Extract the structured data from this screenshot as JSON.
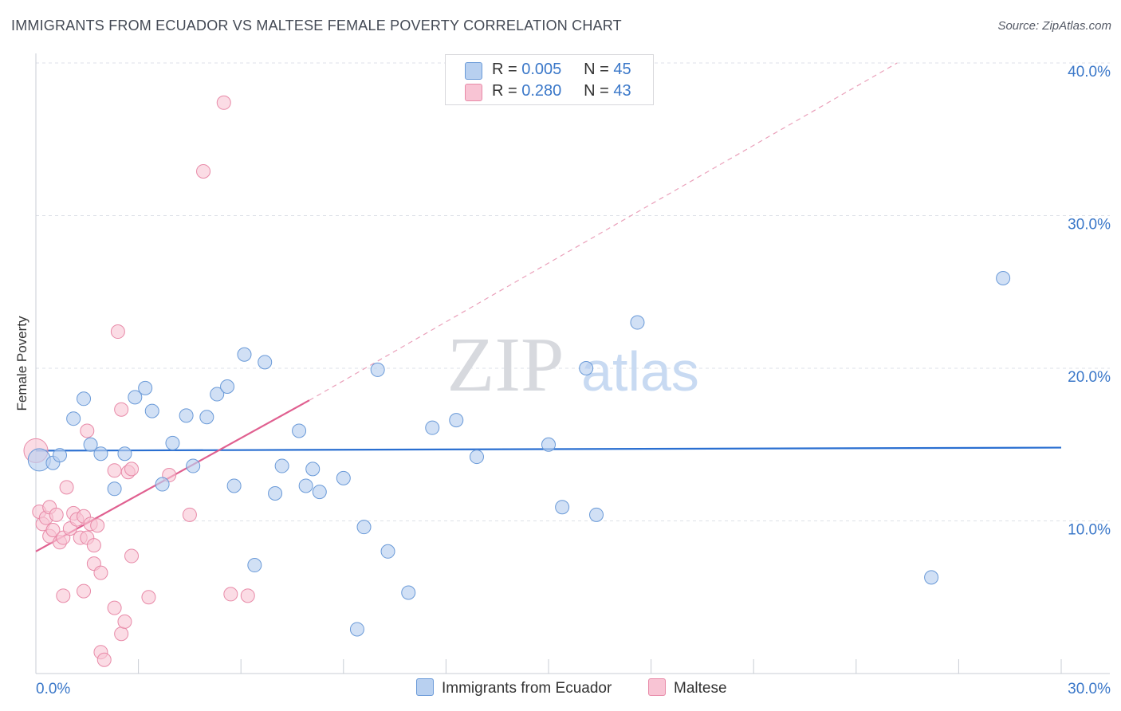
{
  "title": "IMMIGRANTS FROM ECUADOR VS MALTESE FEMALE POVERTY CORRELATION CHART",
  "source": "Source: ZipAtlas.com",
  "watermark": {
    "zip": "ZIP",
    "atlas": "atlas"
  },
  "legend": {
    "series1": {
      "r_label": "R =",
      "r_value": "0.005",
      "n_label": "N =",
      "n_value": "45"
    },
    "series2": {
      "r_label": "R =",
      "r_value": "0.280",
      "n_label": "N =",
      "n_value": "43"
    }
  },
  "colors": {
    "blue_fill": "#b8d0f0",
    "blue_stroke": "#6a9ad8",
    "blue_line": "#2a6fd1",
    "pink_fill": "#f8c4d4",
    "pink_stroke": "#e88aa8",
    "pink_line": "#e06090",
    "axis_text": "#3b78c9",
    "grid": "#dde1e8"
  },
  "chart_data": {
    "type": "scatter",
    "title": "IMMIGRANTS FROM ECUADOR VS MALTESE FEMALE POVERTY CORRELATION CHART",
    "xlabel": "",
    "ylabel": "Female Poverty",
    "xlim": [
      0,
      30
    ],
    "ylim": [
      0,
      40
    ],
    "x_tick_labels": [
      "0.0%",
      "30.0%"
    ],
    "y_ticks": [
      10,
      20,
      30,
      40
    ],
    "y_tick_labels": [
      "10.0%",
      "20.0%",
      "30.0%",
      "40.0%"
    ],
    "grid": true,
    "series": [
      {
        "name": "Immigrants from Ecuador",
        "color": "blue",
        "trend": {
          "x": [
            0,
            30
          ],
          "y": [
            14.6,
            14.8
          ]
        },
        "points": [
          [
            0.1,
            14.0
          ],
          [
            0.5,
            13.8
          ],
          [
            0.7,
            14.3
          ],
          [
            1.1,
            16.7
          ],
          [
            1.4,
            18.0
          ],
          [
            1.6,
            15.0
          ],
          [
            1.9,
            14.4
          ],
          [
            2.3,
            12.1
          ],
          [
            2.6,
            14.4
          ],
          [
            2.9,
            18.1
          ],
          [
            3.2,
            18.7
          ],
          [
            3.4,
            17.2
          ],
          [
            3.7,
            12.4
          ],
          [
            4.0,
            15.1
          ],
          [
            4.4,
            16.9
          ],
          [
            4.6,
            13.6
          ],
          [
            5.0,
            16.8
          ],
          [
            5.3,
            18.3
          ],
          [
            5.6,
            18.8
          ],
          [
            5.8,
            12.3
          ],
          [
            6.1,
            20.9
          ],
          [
            6.4,
            7.1
          ],
          [
            6.7,
            20.4
          ],
          [
            7.0,
            11.8
          ],
          [
            7.2,
            13.6
          ],
          [
            7.7,
            15.9
          ],
          [
            7.9,
            12.3
          ],
          [
            8.1,
            13.4
          ],
          [
            8.3,
            11.9
          ],
          [
            9.0,
            12.8
          ],
          [
            9.4,
            2.9
          ],
          [
            9.6,
            9.6
          ],
          [
            10.0,
            19.9
          ],
          [
            10.3,
            8.0
          ],
          [
            10.9,
            5.3
          ],
          [
            11.6,
            16.1
          ],
          [
            12.3,
            16.6
          ],
          [
            12.9,
            14.2
          ],
          [
            15.0,
            15.0
          ],
          [
            15.4,
            10.9
          ],
          [
            16.1,
            20.0
          ],
          [
            16.4,
            10.4
          ],
          [
            17.6,
            23.0
          ],
          [
            26.2,
            6.3
          ],
          [
            28.3,
            25.9
          ]
        ]
      },
      {
        "name": "Maltese",
        "color": "pink",
        "trend": {
          "x": [
            0,
            8
          ],
          "y": [
            8.0,
            17.9
          ]
        },
        "trend_extended": {
          "x": [
            8,
            25.2
          ],
          "y": [
            17.9,
            40.0
          ]
        },
        "points": [
          [
            0.0,
            14.6
          ],
          [
            0.1,
            10.6
          ],
          [
            0.2,
            9.8
          ],
          [
            0.3,
            10.2
          ],
          [
            0.4,
            9.0
          ],
          [
            0.4,
            10.9
          ],
          [
            0.5,
            9.4
          ],
          [
            0.6,
            10.4
          ],
          [
            0.7,
            8.6
          ],
          [
            0.8,
            8.9
          ],
          [
            0.8,
            5.1
          ],
          [
            0.9,
            12.2
          ],
          [
            1.0,
            9.5
          ],
          [
            1.1,
            10.5
          ],
          [
            1.2,
            10.1
          ],
          [
            1.3,
            8.9
          ],
          [
            1.4,
            5.4
          ],
          [
            1.4,
            10.3
          ],
          [
            1.5,
            8.9
          ],
          [
            1.5,
            15.9
          ],
          [
            1.6,
            9.8
          ],
          [
            1.7,
            7.2
          ],
          [
            1.7,
            8.4
          ],
          [
            1.8,
            9.7
          ],
          [
            1.9,
            6.6
          ],
          [
            1.9,
            1.4
          ],
          [
            2.0,
            0.9
          ],
          [
            2.3,
            13.3
          ],
          [
            2.3,
            4.3
          ],
          [
            2.4,
            22.4
          ],
          [
            2.5,
            17.3
          ],
          [
            2.5,
            2.6
          ],
          [
            2.6,
            3.4
          ],
          [
            2.7,
            13.2
          ],
          [
            2.8,
            13.4
          ],
          [
            2.8,
            7.7
          ],
          [
            3.3,
            5.0
          ],
          [
            3.9,
            13.0
          ],
          [
            4.5,
            10.4
          ],
          [
            4.9,
            32.9
          ],
          [
            5.5,
            37.4
          ],
          [
            5.7,
            5.2
          ],
          [
            6.2,
            5.1
          ]
        ]
      }
    ]
  },
  "bottom_legend": {
    "series1": "Immigrants from Ecuador",
    "series2": "Maltese"
  }
}
